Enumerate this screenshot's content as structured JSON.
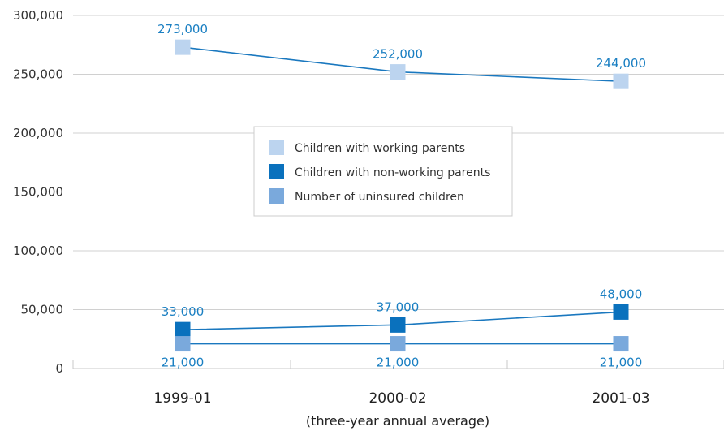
{
  "chart_data": {
    "type": "line",
    "categories": [
      "1999-01",
      "2000-02",
      "2001-03"
    ],
    "xlabel": "(three-year annual average)",
    "ylabel": "",
    "ylim": [
      0,
      300000
    ],
    "yticks": [
      0,
      50000,
      100000,
      150000,
      200000,
      250000,
      300000
    ],
    "ytick_labels": [
      "0",
      "50,000",
      "100,000",
      "150,000",
      "200,000",
      "250,000",
      "300,000"
    ],
    "grid": true,
    "legend": "center",
    "series": [
      {
        "name": "Children with working parents",
        "values": [
          273000,
          252000,
          244000
        ],
        "labels": [
          "273,000",
          "252,000",
          "244,000"
        ],
        "label_position": "above",
        "color": "#bcd4ef"
      },
      {
        "name": "Children with non-working parents",
        "values": [
          33000,
          37000,
          48000
        ],
        "labels": [
          "33,000",
          "37,000",
          "48,000"
        ],
        "label_position": "above",
        "color": "#0a71bd"
      },
      {
        "name": "Number of uninsured children",
        "values": [
          21000,
          21000,
          21000
        ],
        "labels": [
          "21,000",
          "21,000",
          "21,000"
        ],
        "label_position": "below",
        "color": "#7aa9dc"
      }
    ],
    "colors": {
      "line": "#1a78bf",
      "label": "#1a7fc2",
      "grid": "#d0d0d0"
    }
  }
}
